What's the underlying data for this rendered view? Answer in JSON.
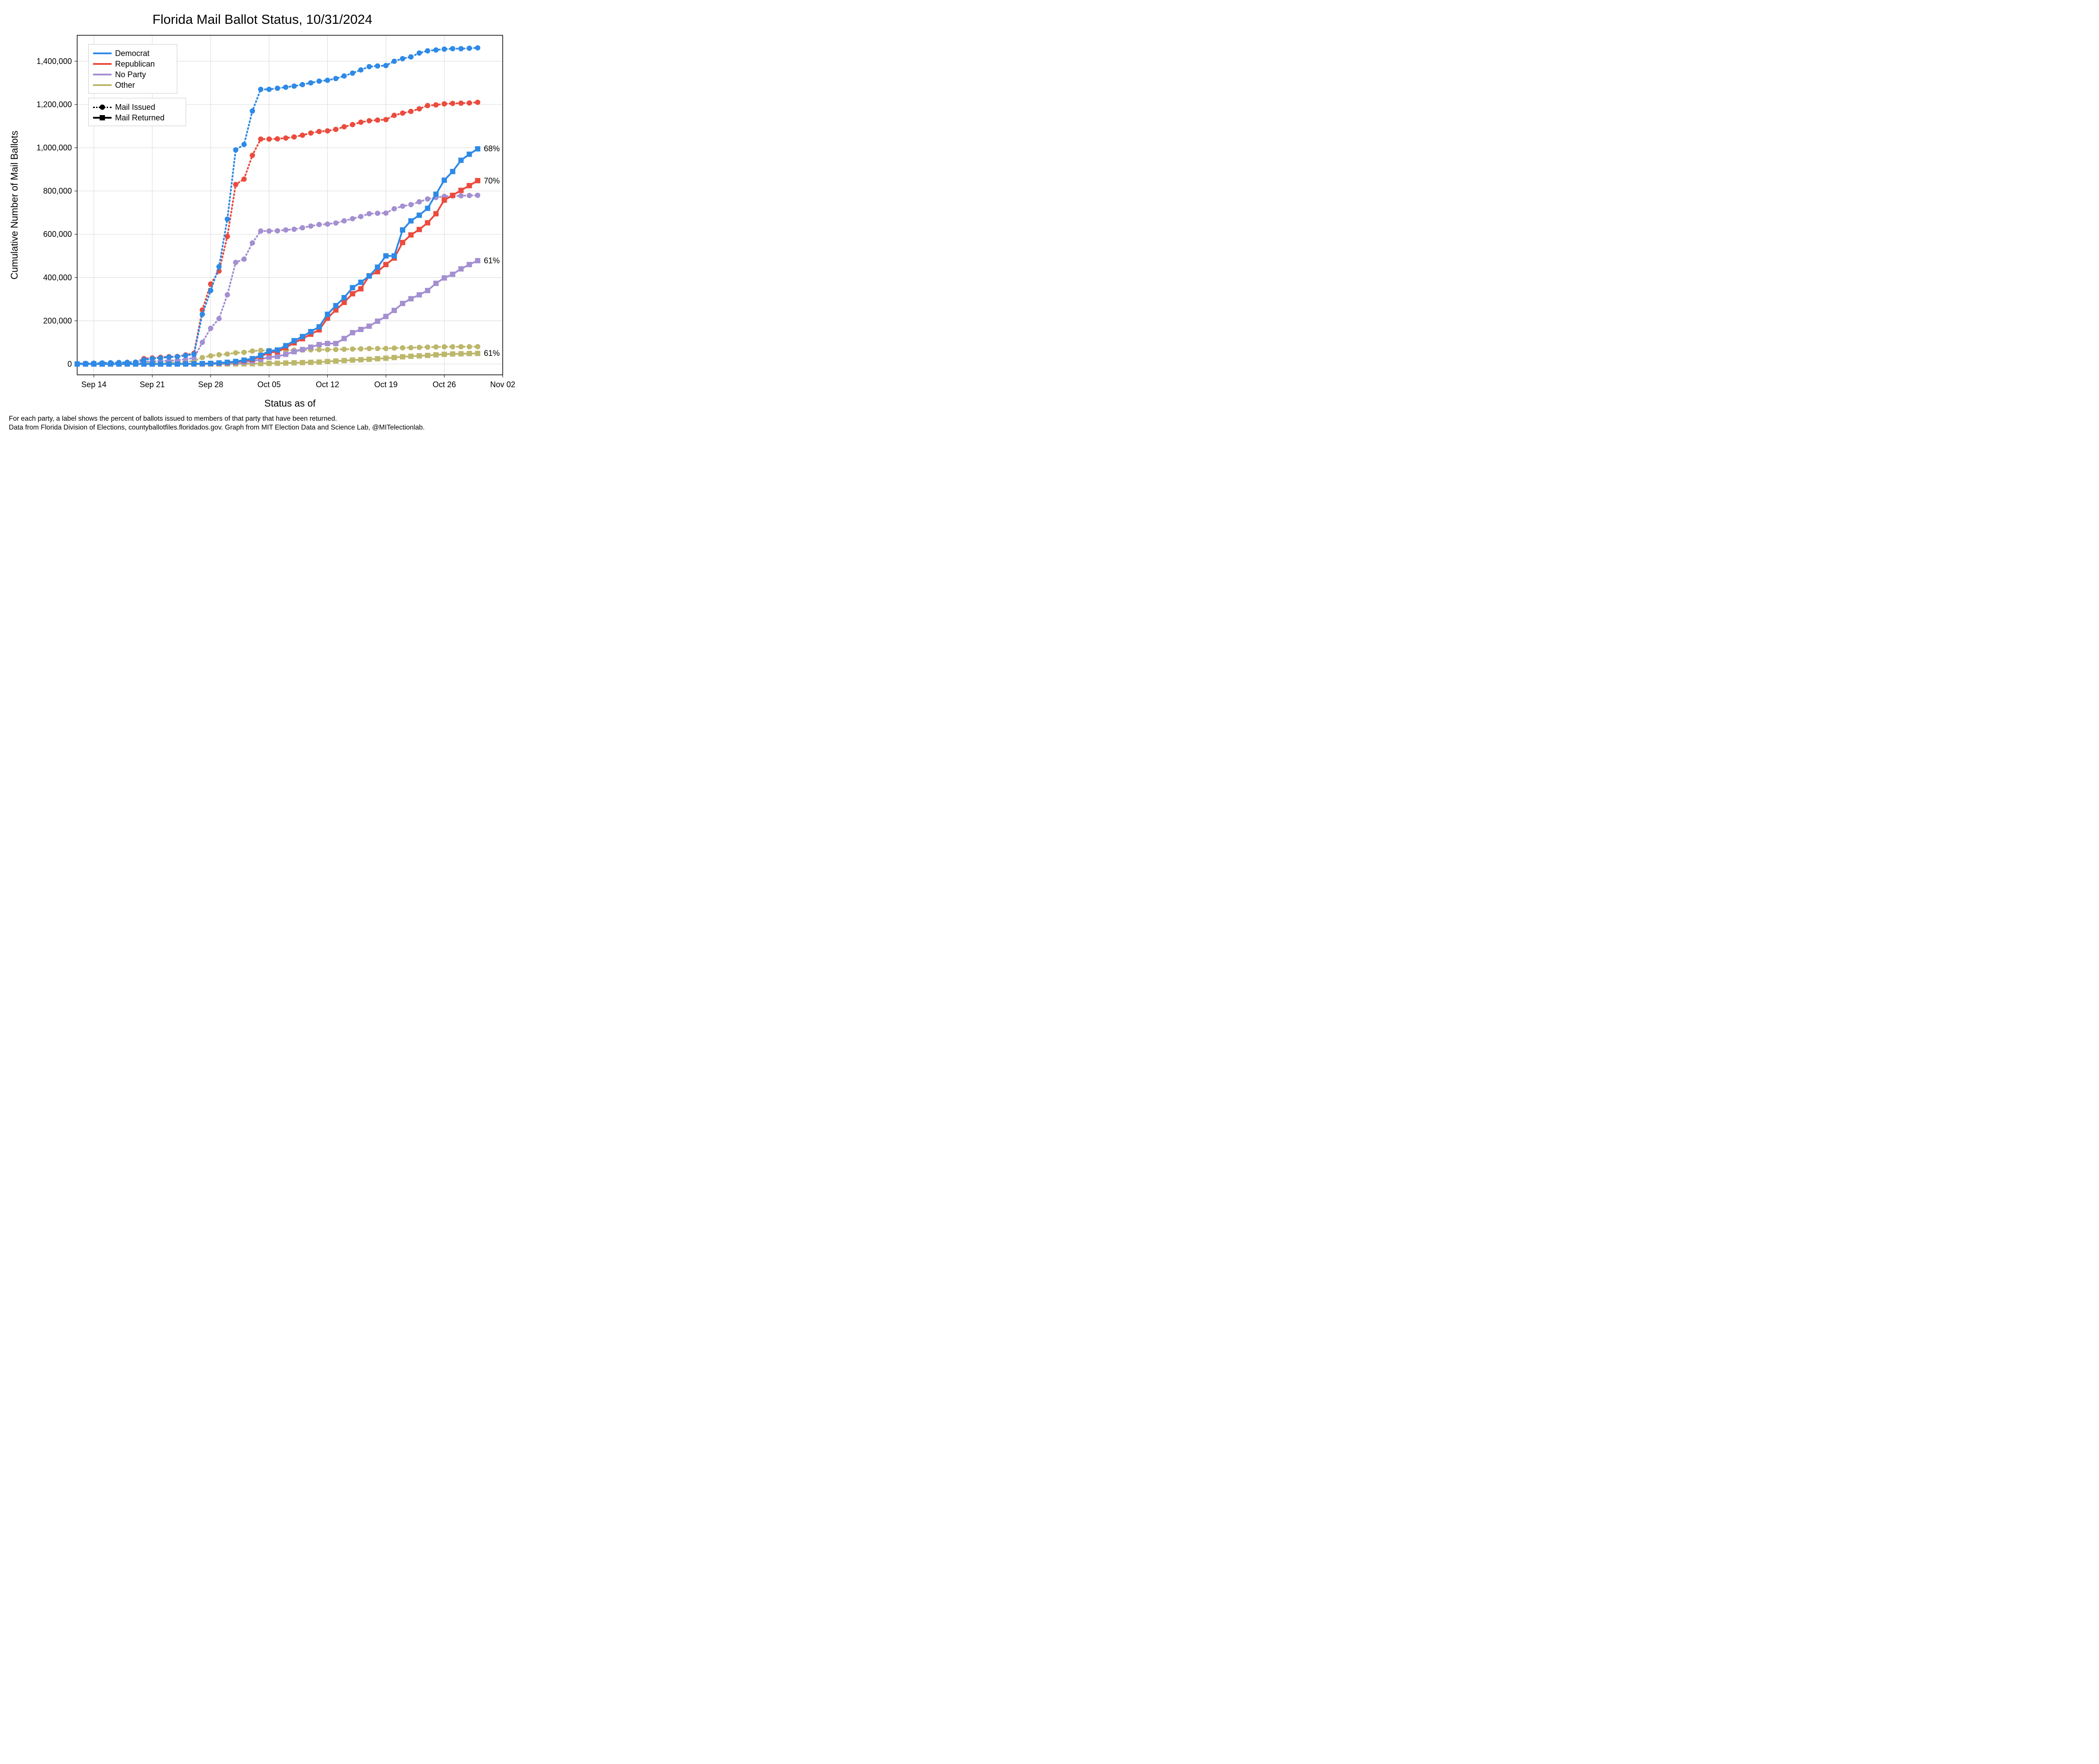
{
  "chart": {
    "type": "line",
    "title": "Florida Mail Ballot Status, 10/31/2024",
    "title_fontsize": 30,
    "xlabel": "Status as of",
    "ylabel": "Cumulative Number of Mail Ballots",
    "label_fontsize": 22,
    "background_color": "#ffffff",
    "grid_color": "#d9d9d9",
    "axis_color": "#000000",
    "xlim_days": [
      0,
      51
    ],
    "ylim": [
      -50000,
      1520000
    ],
    "yticks": [
      0,
      200000,
      400000,
      600000,
      800000,
      1000000,
      1200000,
      1400000
    ],
    "ytick_labels": [
      "0",
      "200,000",
      "400,000",
      "600,000",
      "800,000",
      "1,000,000",
      "1,200,000",
      "1,400,000"
    ],
    "xticks_days": [
      2,
      9,
      16,
      23,
      30,
      37,
      44,
      51
    ],
    "xtick_labels": [
      "Sep 14",
      "Sep 21",
      "Sep 28",
      "Oct 05",
      "Oct 12",
      "Oct 19",
      "Oct 26",
      "Nov 02"
    ],
    "line_width": 4,
    "marker_size": 6,
    "legend_colors": [
      {
        "label": "Democrat",
        "color": "#2e8ae6"
      },
      {
        "label": "Republican",
        "color": "#eb4b3d"
      },
      {
        "label": "No Party",
        "color": "#a48fd1"
      },
      {
        "label": "Other",
        "color": "#bdb76b"
      }
    ],
    "legend_styles": [
      {
        "label": "Mail Issued",
        "style": "dotted",
        "marker": "circle"
      },
      {
        "label": "Mail Returned",
        "style": "solid",
        "marker": "square"
      }
    ],
    "x_days": [
      0,
      1,
      2,
      3,
      4,
      5,
      6,
      7,
      8,
      9,
      10,
      11,
      12,
      13,
      14,
      15,
      16,
      17,
      18,
      19,
      20,
      21,
      22,
      23,
      24,
      25,
      26,
      27,
      28,
      29,
      30,
      31,
      32,
      33,
      34,
      35,
      36,
      37,
      38,
      39,
      40,
      41,
      42,
      43,
      44,
      45,
      46,
      47,
      48
    ],
    "series": {
      "dem_issued": {
        "color": "#2e8ae6",
        "style": "dotted",
        "marker": "circle",
        "y": [
          2000,
          3000,
          4000,
          5000,
          6000,
          7000,
          8000,
          9000,
          20000,
          25000,
          28000,
          32000,
          34000,
          40000,
          45000,
          230000,
          340000,
          450000,
          670000,
          990000,
          1015000,
          1170000,
          1270000,
          1270000,
          1275000,
          1280000,
          1285000,
          1292000,
          1300000,
          1308000,
          1312000,
          1320000,
          1332000,
          1345000,
          1360000,
          1375000,
          1378000,
          1380000,
          1400000,
          1412000,
          1420000,
          1438000,
          1448000,
          1452000,
          1456000,
          1458000,
          1458000,
          1460000,
          1462000
        ]
      },
      "rep_issued": {
        "color": "#eb4b3d",
        "style": "dotted",
        "marker": "circle",
        "y": [
          1000,
          2000,
          3000,
          4000,
          5000,
          6000,
          7000,
          8000,
          25000,
          28000,
          31000,
          34000,
          35000,
          42000,
          50000,
          250000,
          370000,
          430000,
          590000,
          830000,
          855000,
          965000,
          1040000,
          1040000,
          1041000,
          1045000,
          1050000,
          1058000,
          1068000,
          1075000,
          1078000,
          1085000,
          1097000,
          1107000,
          1118000,
          1125000,
          1128000,
          1130000,
          1150000,
          1160000,
          1168000,
          1180000,
          1195000,
          1198000,
          1203000,
          1205000,
          1206000,
          1207000,
          1210000
        ]
      },
      "npa_issued": {
        "color": "#a48fd1",
        "style": "dotted",
        "marker": "circle",
        "y": [
          500,
          1000,
          1500,
          2000,
          2500,
          3000,
          3500,
          4000,
          10000,
          12000,
          14000,
          16000,
          17000,
          22000,
          28000,
          100000,
          165000,
          210000,
          320000,
          470000,
          485000,
          560000,
          615000,
          615000,
          616000,
          620000,
          623000,
          630000,
          638000,
          645000,
          647000,
          652000,
          662000,
          672000,
          682000,
          695000,
          697000,
          698000,
          718000,
          730000,
          737000,
          750000,
          763000,
          770000,
          775000,
          777000,
          778000,
          779000,
          780000
        ]
      },
      "oth_issued": {
        "color": "#bdb76b",
        "style": "dotted",
        "marker": "circle",
        "y": [
          100,
          200,
          300,
          400,
          500,
          600,
          700,
          800,
          3000,
          4000,
          5000,
          6000,
          7000,
          10000,
          14000,
          30000,
          38000,
          43000,
          46000,
          52000,
          54000,
          60000,
          63000,
          63000,
          63200,
          63600,
          64000,
          64800,
          65800,
          66400,
          66700,
          67300,
          68200,
          69300,
          70300,
          71500,
          71700,
          71900,
          73700,
          75000,
          75700,
          77000,
          78300,
          78900,
          79500,
          79800,
          79900,
          80000,
          80500
        ]
      },
      "dem_returned": {
        "color": "#2e8ae6",
        "style": "solid",
        "marker": "square",
        "y": [
          0,
          0,
          0,
          0,
          0,
          0,
          0,
          0,
          0,
          0,
          0,
          0,
          0,
          500,
          1000,
          2000,
          3000,
          5000,
          8000,
          12000,
          18000,
          25000,
          40000,
          60000,
          65000,
          85000,
          108000,
          127000,
          150000,
          172000,
          230000,
          270000,
          307000,
          353000,
          378000,
          407000,
          448000,
          500000,
          500000,
          620000,
          662000,
          688000,
          720000,
          785000,
          850000,
          890000,
          942000,
          970000,
          995000
        ],
        "end_label": "68%"
      },
      "rep_returned": {
        "color": "#eb4b3d",
        "style": "solid",
        "marker": "square",
        "y": [
          0,
          0,
          0,
          0,
          0,
          0,
          0,
          0,
          0,
          0,
          0,
          0,
          0,
          400,
          800,
          1500,
          2500,
          4000,
          6500,
          10000,
          15000,
          21000,
          35000,
          53000,
          57000,
          76000,
          98000,
          117000,
          138000,
          158000,
          212000,
          250000,
          285000,
          325000,
          348000,
          408000,
          427000,
          460000,
          490000,
          562000,
          597000,
          622000,
          653000,
          695000,
          758000,
          780000,
          803000,
          825000,
          848000
        ],
        "end_label": "70%"
      },
      "npa_returned": {
        "color": "#a48fd1",
        "style": "solid",
        "marker": "square",
        "y": [
          0,
          0,
          0,
          0,
          0,
          0,
          0,
          0,
          0,
          0,
          0,
          0,
          0,
          200,
          400,
          800,
          1500,
          2500,
          4000,
          6000,
          9000,
          13000,
          22000,
          32000,
          35000,
          45000,
          57000,
          67000,
          78000,
          90000,
          95000,
          95000,
          118000,
          145000,
          160000,
          175000,
          198000,
          220000,
          248000,
          280000,
          302000,
          320000,
          340000,
          373000,
          398000,
          415000,
          440000,
          460000,
          478000
        ],
        "end_label": "61%"
      },
      "oth_returned": {
        "color": "#bdb76b",
        "style": "solid",
        "marker": "square",
        "y": [
          0,
          0,
          0,
          0,
          0,
          0,
          0,
          0,
          0,
          0,
          0,
          0,
          0,
          20,
          40,
          80,
          150,
          250,
          400,
          600,
          900,
          1300,
          2200,
          3200,
          3500,
          4500,
          5700,
          6700,
          7800,
          9000,
          11800,
          14000,
          16000,
          18500,
          20000,
          22000,
          24500,
          27000,
          30000,
          33500,
          36000,
          37800,
          39800,
          42500,
          45000,
          46500,
          47500,
          48500,
          49000
        ],
        "end_label": "61%"
      }
    },
    "caption_line1": "For each party, a label shows the percent of ballots issued to members of that party that have been returned.",
    "caption_line2": "Data from Florida Division of Elections, countyballotfiles.floridados.gov. Graph from MIT Election Data and Science Lab, @MITelectionlab."
  }
}
